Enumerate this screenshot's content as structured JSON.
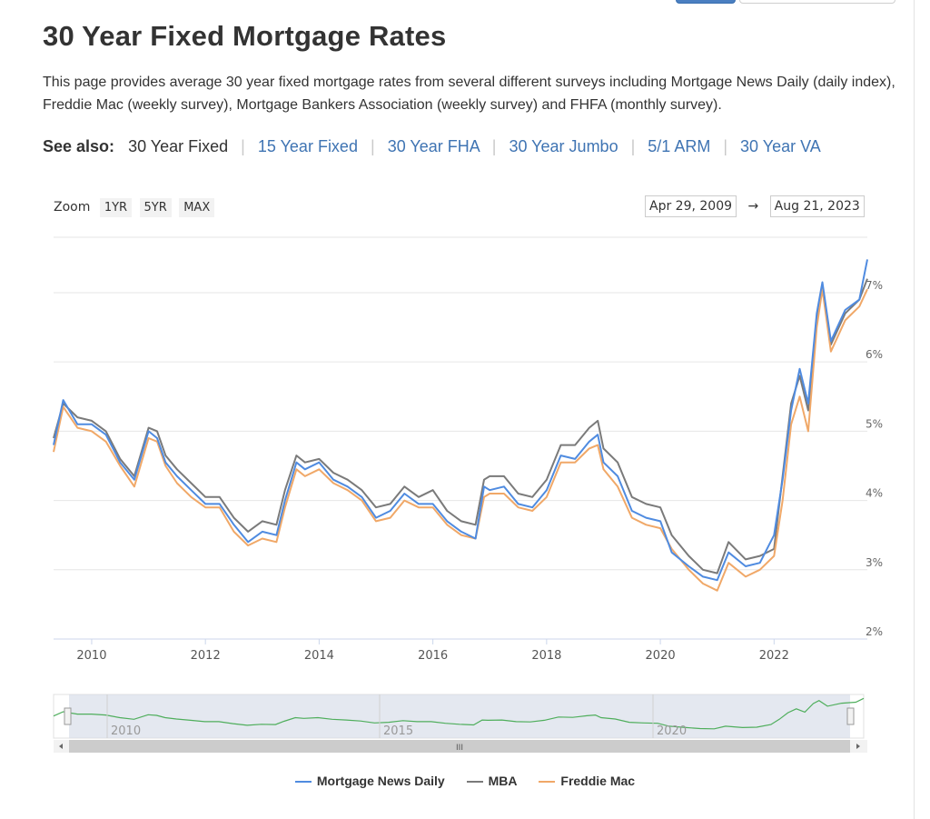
{
  "page": {
    "title": "30 Year Fixed Mortgage Rates",
    "intro": "This page provides average 30 year fixed mortgage rates from several different surveys including Mortgage News Daily (daily index), Freddie Mac (weekly survey), Mortgage Bankers Association (weekly survey) and FHFA (monthly survey).",
    "see_also_label": "See also:",
    "see_also_current": "30 Year Fixed",
    "see_also_links": [
      "15 Year Fixed",
      "30 Year FHA",
      "30 Year Jumbo",
      "5/1 ARM",
      "30 Year VA"
    ]
  },
  "controls": {
    "zoom_label": "Zoom",
    "zoom_buttons": [
      "1YR",
      "5YR",
      "MAX"
    ],
    "date_from": "Apr 29, 2009",
    "arrow": "→",
    "date_to": "Aug 21, 2023"
  },
  "navigator": {
    "labels": [
      "2010",
      "2015",
      "2020"
    ],
    "scroll_grip": "III"
  },
  "colors": {
    "mnd": "#4f8be0",
    "mba": "#7a7a7a",
    "freddie": "#f0a868",
    "navigator_line": "#4fae5c",
    "link": "#3f74b3"
  },
  "chart_data": {
    "type": "line",
    "title": "",
    "xlabel": "",
    "ylabel": "",
    "xlim": [
      2009.33,
      2023.64
    ],
    "ylim": [
      2,
      7.8
    ],
    "x_ticks": [
      2010,
      2012,
      2014,
      2016,
      2018,
      2020,
      2022
    ],
    "y_ticks": [
      2,
      3,
      4,
      5,
      6,
      7
    ],
    "y_tick_labels": [
      "2%",
      "3%",
      "4%",
      "5%",
      "6%",
      "7%"
    ],
    "grid": true,
    "legend_position": "bottom",
    "x": [
      2009.33,
      2009.5,
      2009.75,
      2010.0,
      2010.25,
      2010.5,
      2010.75,
      2011.0,
      2011.15,
      2011.3,
      2011.5,
      2011.75,
      2012.0,
      2012.25,
      2012.5,
      2012.75,
      2013.0,
      2013.25,
      2013.4,
      2013.6,
      2013.75,
      2014.0,
      2014.25,
      2014.5,
      2014.75,
      2015.0,
      2015.25,
      2015.5,
      2015.75,
      2016.0,
      2016.25,
      2016.5,
      2016.75,
      2016.9,
      2017.0,
      2017.25,
      2017.5,
      2017.75,
      2018.0,
      2018.25,
      2018.5,
      2018.75,
      2018.9,
      2019.0,
      2019.25,
      2019.5,
      2019.75,
      2020.0,
      2020.2,
      2020.5,
      2020.75,
      2021.0,
      2021.2,
      2021.5,
      2021.75,
      2022.0,
      2022.15,
      2022.3,
      2022.45,
      2022.6,
      2022.75,
      2022.85,
      2023.0,
      2023.25,
      2023.5,
      2023.64
    ],
    "series": [
      {
        "name": "Mortgage News Daily",
        "values": [
          4.8,
          5.45,
          5.1,
          5.1,
          4.95,
          4.55,
          4.3,
          5.0,
          4.9,
          4.55,
          4.35,
          4.15,
          3.95,
          3.95,
          3.65,
          3.4,
          3.55,
          3.5,
          4.0,
          4.55,
          4.45,
          4.55,
          4.3,
          4.2,
          4.05,
          3.75,
          3.85,
          4.1,
          3.95,
          3.95,
          3.7,
          3.55,
          3.45,
          4.2,
          4.15,
          4.2,
          3.95,
          3.9,
          4.15,
          4.65,
          4.6,
          4.85,
          4.95,
          4.55,
          4.35,
          3.85,
          3.75,
          3.7,
          3.25,
          3.05,
          2.9,
          2.85,
          3.25,
          3.05,
          3.1,
          3.5,
          4.3,
          5.3,
          5.9,
          5.4,
          6.7,
          7.15,
          6.3,
          6.75,
          6.9,
          7.48
        ]
      },
      {
        "name": "MBA",
        "values": [
          4.9,
          5.4,
          5.2,
          5.15,
          5.0,
          4.6,
          4.35,
          5.05,
          5.0,
          4.65,
          4.45,
          4.25,
          4.05,
          4.05,
          3.75,
          3.55,
          3.7,
          3.65,
          4.15,
          4.65,
          4.55,
          4.6,
          4.4,
          4.3,
          4.15,
          3.9,
          3.95,
          4.2,
          4.05,
          4.15,
          3.85,
          3.7,
          3.65,
          4.3,
          4.35,
          4.35,
          4.1,
          4.05,
          4.3,
          4.8,
          4.8,
          5.05,
          5.15,
          4.75,
          4.55,
          4.05,
          3.95,
          3.9,
          3.5,
          3.2,
          3.0,
          2.95,
          3.4,
          3.15,
          3.2,
          3.3,
          4.35,
          5.4,
          5.8,
          5.3,
          6.6,
          7.1,
          6.25,
          6.7,
          6.9,
          7.2
        ]
      },
      {
        "name": "Freddie Mac",
        "values": [
          4.7,
          5.35,
          5.05,
          5.0,
          4.85,
          4.5,
          4.2,
          4.9,
          4.85,
          4.5,
          4.25,
          4.05,
          3.9,
          3.9,
          3.55,
          3.35,
          3.45,
          3.4,
          3.9,
          4.45,
          4.35,
          4.45,
          4.25,
          4.15,
          4.0,
          3.7,
          3.75,
          4.0,
          3.9,
          3.9,
          3.65,
          3.5,
          3.45,
          4.05,
          4.1,
          4.1,
          3.9,
          3.85,
          4.05,
          4.55,
          4.55,
          4.75,
          4.8,
          4.45,
          4.2,
          3.75,
          3.65,
          3.6,
          3.3,
          3.0,
          2.8,
          2.7,
          3.1,
          2.9,
          3.0,
          3.2,
          4.0,
          5.1,
          5.5,
          5.0,
          6.5,
          7.05,
          6.15,
          6.6,
          6.8,
          7.05
        ]
      }
    ]
  }
}
